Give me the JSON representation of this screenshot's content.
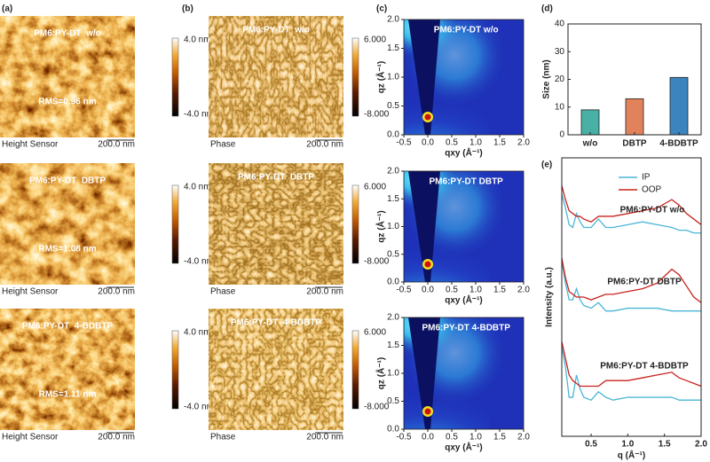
{
  "panel_labels": [
    "(a)",
    "(b)",
    "(c)",
    "(d)",
    "(e)"
  ],
  "afm": {
    "rows": [
      {
        "title": "PM6:PY-DT  w/o",
        "rms": "RMS=0.96 nm"
      },
      {
        "title": "PM6:PY-DT  DBTP",
        "rms": "RMS=1.08 nm"
      },
      {
        "title": "PM6:PY-DT  4-BDBTP",
        "rms": "RMS=1.11 nm"
      }
    ],
    "sensor": "Height Sensor",
    "scale": "200.0 nm",
    "colorbar": [
      "4.0 nm",
      "-4.0 nm"
    ]
  },
  "phase": {
    "rows": [
      "PM6:PY-DT  w/o",
      "PM6:PY-DT  DBTP",
      "PM6:PY-DT  4-BDBTP"
    ],
    "sensor": "Phase",
    "scale": "200.0 nm",
    "colorbar": [
      "6.000",
      "-8.000"
    ]
  },
  "giwaxs": {
    "titles": [
      "PM6:PY-DT w/o",
      "PM6:PY-DT DBTP",
      "PM6:PY-DT 4-BDBTP"
    ],
    "xlabel": "qxy (Å⁻¹)",
    "ylabel": "qz (Å⁻¹)",
    "xlim": [
      -0.5,
      2.0
    ],
    "ylim": [
      0,
      2.0
    ],
    "xticks": [
      -0.5,
      {
        "value": 0,
        "label": "0.0"
      },
      0.5,
      {
        "value": 1,
        "label": "1.0"
      },
      1.5,
      {
        "value": 2,
        "label": "2.0"
      }
    ],
    "yticks": [
      {
        "value": 0,
        "label": "0.0"
      },
      0.5,
      {
        "value": 1,
        "label": "1.0"
      },
      1.5,
      {
        "value": 2,
        "label": "2.0"
      }
    ]
  },
  "chart_data": [
    {
      "type": "bar",
      "ylabel": "Size (nm)",
      "categories": [
        "w/o",
        "DBTP",
        "4-BDBTP"
      ],
      "values": [
        9,
        13,
        20.7
      ],
      "colors": [
        "#49b0a6",
        "#e2825a",
        "#3b84bd"
      ],
      "ylim": [
        0,
        40
      ],
      "yticks": [
        0,
        10,
        20,
        30,
        40
      ]
    },
    {
      "type": "line",
      "xlabel": "q (Å⁻¹)",
      "ylabel": "Intensity (a.u.)",
      "x": [
        0.1,
        0.15,
        0.2,
        0.25,
        0.3,
        0.35,
        0.4,
        0.5,
        0.6,
        0.7,
        0.8,
        1.0,
        1.2,
        1.4,
        1.6,
        1.7,
        1.8,
        1.9,
        2.0
      ],
      "xlim": [
        0.1,
        2.0
      ],
      "xticks": [
        0.5,
        {
          "value": 1,
          "label": "1.0"
        },
        1.5,
        {
          "value": 2,
          "label": "2.0"
        }
      ],
      "ylim": [
        0,
        10
      ],
      "legend": [
        {
          "name": "IP",
          "color": "#4bb6d6"
        },
        {
          "name": "OOP",
          "color": "#c8221c"
        }
      ],
      "samples": [
        {
          "label": "PM6:PY-DT w/o",
          "ip": [
            8.7,
            8.2,
            7.6,
            7.5,
            8.0,
            7.7,
            7.5,
            7.5,
            7.8,
            7.5,
            7.5,
            7.6,
            7.7,
            7.6,
            7.5,
            7.4,
            7.4,
            7.3,
            7.3
          ],
          "oop": [
            9.0,
            8.5,
            8.1,
            8.0,
            7.9,
            7.9,
            7.8,
            7.7,
            7.9,
            7.9,
            7.9,
            8.0,
            8.1,
            8.2,
            8.5,
            8.3,
            8.0,
            7.8,
            7.6
          ]
        },
        {
          "label": "PM6:PY-DT DBTP",
          "ip": [
            6.3,
            5.5,
            4.9,
            4.9,
            5.3,
            4.9,
            4.7,
            4.6,
            4.8,
            4.5,
            4.5,
            4.6,
            4.6,
            4.6,
            4.5,
            4.5,
            4.5,
            4.5,
            4.5
          ],
          "oop": [
            6.4,
            5.7,
            5.2,
            5.1,
            5.0,
            5.0,
            5.0,
            4.9,
            5.0,
            5.1,
            5.1,
            5.2,
            5.3,
            5.5,
            6.0,
            5.8,
            5.4,
            5.0,
            4.8
          ]
        },
        {
          "label": "PM6:PY-DT 4-BDBTP",
          "ip": [
            3.2,
            2.5,
            1.4,
            1.4,
            2.2,
            1.7,
            1.4,
            1.3,
            1.6,
            1.4,
            1.3,
            1.4,
            1.4,
            1.4,
            1.4,
            1.3,
            1.3,
            1.3,
            1.3
          ],
          "oop": [
            3.4,
            2.8,
            2.2,
            2.0,
            1.9,
            1.8,
            1.8,
            1.8,
            1.8,
            2.0,
            2.0,
            2.0,
            2.1,
            2.2,
            2.3,
            2.1,
            2.0,
            1.9,
            1.8
          ]
        }
      ]
    }
  ]
}
